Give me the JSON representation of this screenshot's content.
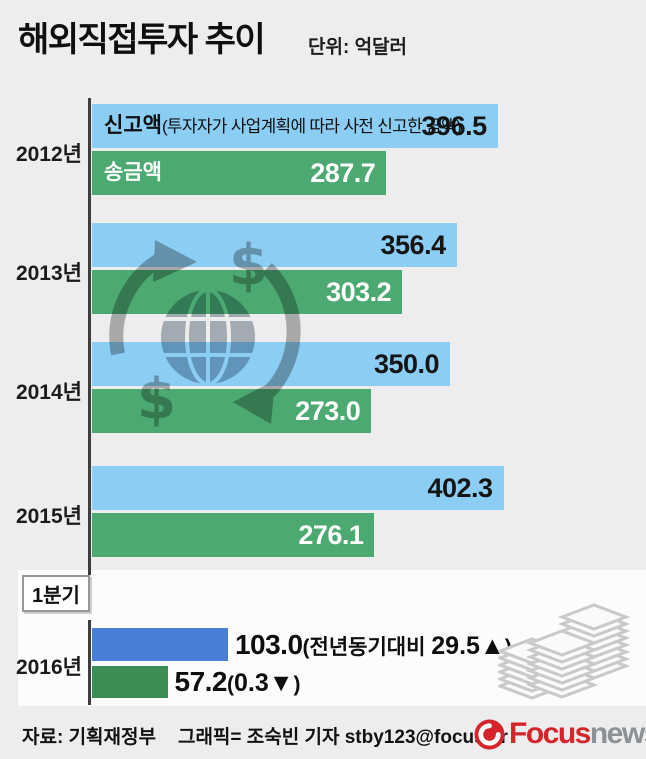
{
  "page": {
    "title": "해외직접투자 추이",
    "unit_label": "단위: 억달러",
    "bg_color": "#EDEDED"
  },
  "chart_data": {
    "type": "bar",
    "orientation": "horizontal",
    "title": "해외직접투자 추이",
    "unit": "억달러",
    "grid": false,
    "legend_position": "inside-first-bars",
    "categories": [
      "2012년",
      "2013년",
      "2014년",
      "2015년"
    ],
    "series": [
      {
        "name": "신고액",
        "description": "(투자자가 사업계획에 따라 사전 신고한 금액)",
        "color": "#8CCDF3",
        "value_text_color": "#151515",
        "values": [
          396.5,
          356.4,
          350.0,
          402.3
        ]
      },
      {
        "name": "송금액",
        "description": "",
        "color": "#4BA971",
        "value_text_color": "#FFFFFF",
        "values": [
          287.7,
          303.2,
          273.0,
          276.1
        ]
      }
    ],
    "q1_2016": {
      "badge": "1분기",
      "category": "2016년",
      "bars": [
        {
          "name": "신고액",
          "value": 103.0,
          "note": "전년동기대비",
          "change": 29.5,
          "arrow": "▲",
          "color": "#4A7DD6"
        },
        {
          "name": "송금액",
          "value": 57.2,
          "note": "",
          "change": 0.3,
          "arrow": "▼",
          "color": "#3B8D56"
        }
      ]
    }
  },
  "footer": {
    "source": "자료: 기획재정부",
    "credit": "그래픽= 조숙빈 기자 stby123@focus.kr",
    "logo": {
      "brand": "Focus",
      "suffix": "news"
    }
  },
  "icons": {
    "watermark": "globe-currency-exchange",
    "money": "banknote-stacks",
    "logo_mark": "focus-swirl"
  }
}
